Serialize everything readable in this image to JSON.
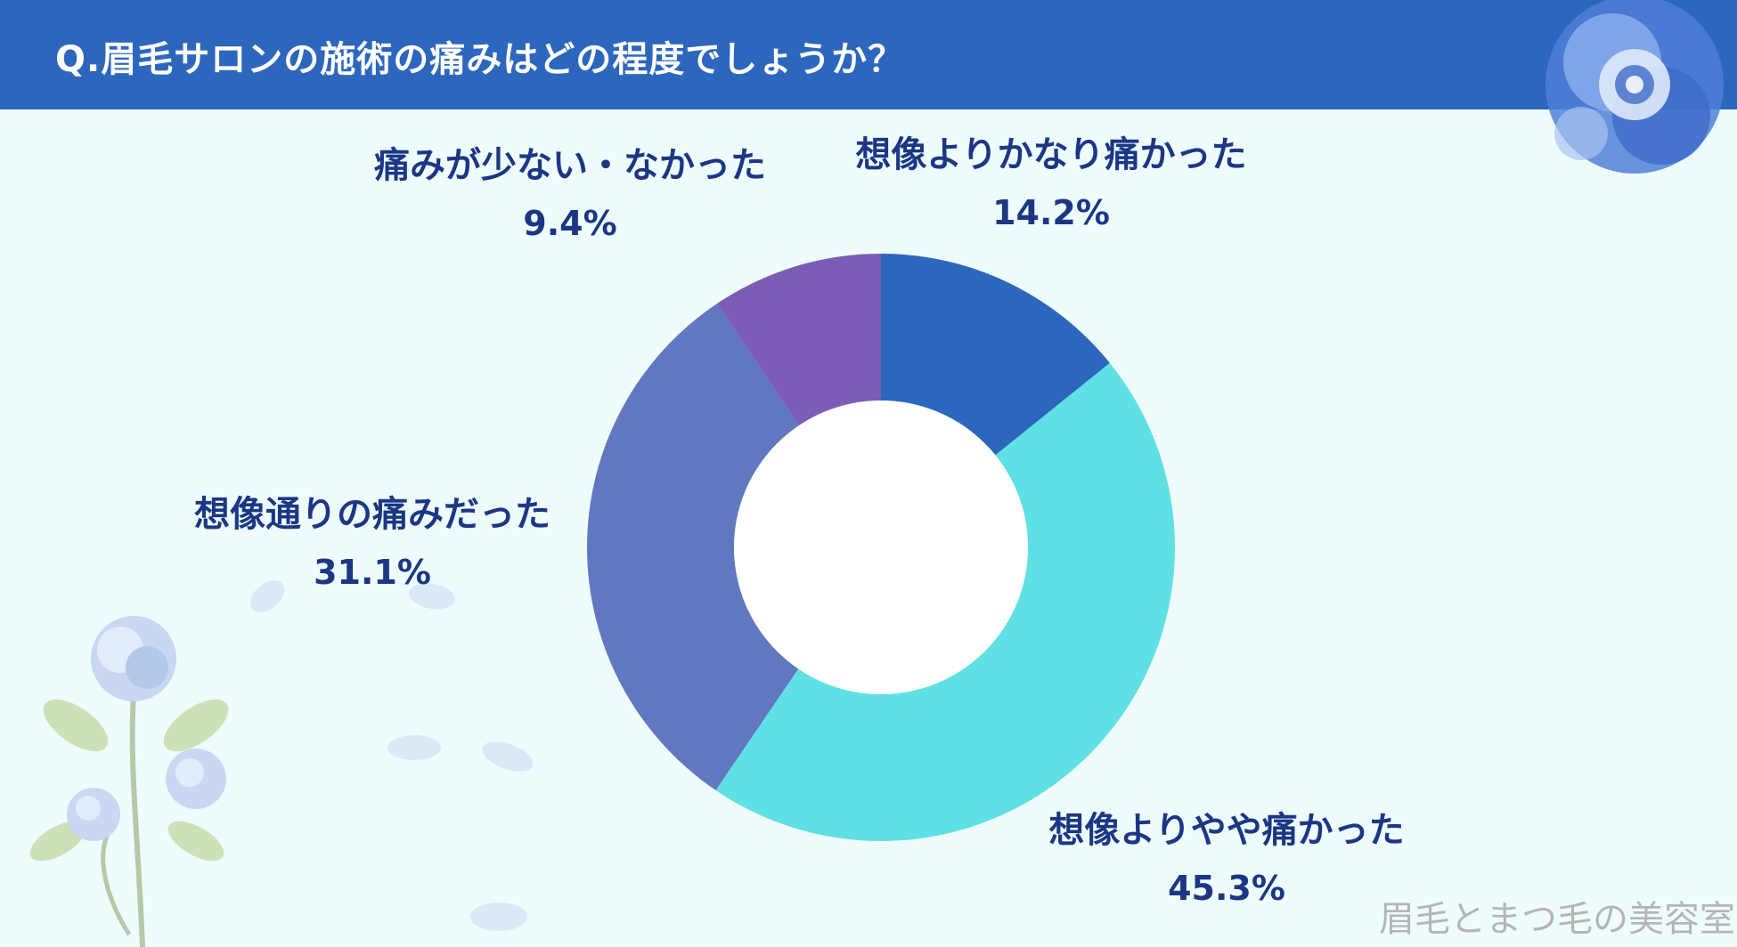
{
  "header": {
    "title": "Q.眉毛サロンの施術の痛みはどの程度でしょうか？",
    "background_color": "#2d67bd"
  },
  "chart_data": {
    "type": "donut",
    "title": "",
    "slices": [
      {
        "label": "想像よりかなり痛かった",
        "value": 14.2,
        "value_label": "14.2%",
        "color": "#2d67bd"
      },
      {
        "label": "想像よりやや痛かった",
        "value": 45.3,
        "value_label": "45.3%",
        "color": "#5fe0e5"
      },
      {
        "label": "想像通りの痛みだった",
        "value": 31.1,
        "value_label": "31.1%",
        "color": "#6178c1"
      },
      {
        "label": "痛みが少ない・なかった",
        "value": 9.4,
        "value_label": "9.4%",
        "color": "#7c5cb6"
      }
    ],
    "start_angle": "12 o'clock",
    "direction": "clockwise"
  },
  "watermark": "眉毛とまつ毛の美容室",
  "decorations": {
    "top_right": "blue-rose-icon",
    "bottom_left": "rose-branch-icon",
    "petals": "petal-icon"
  }
}
